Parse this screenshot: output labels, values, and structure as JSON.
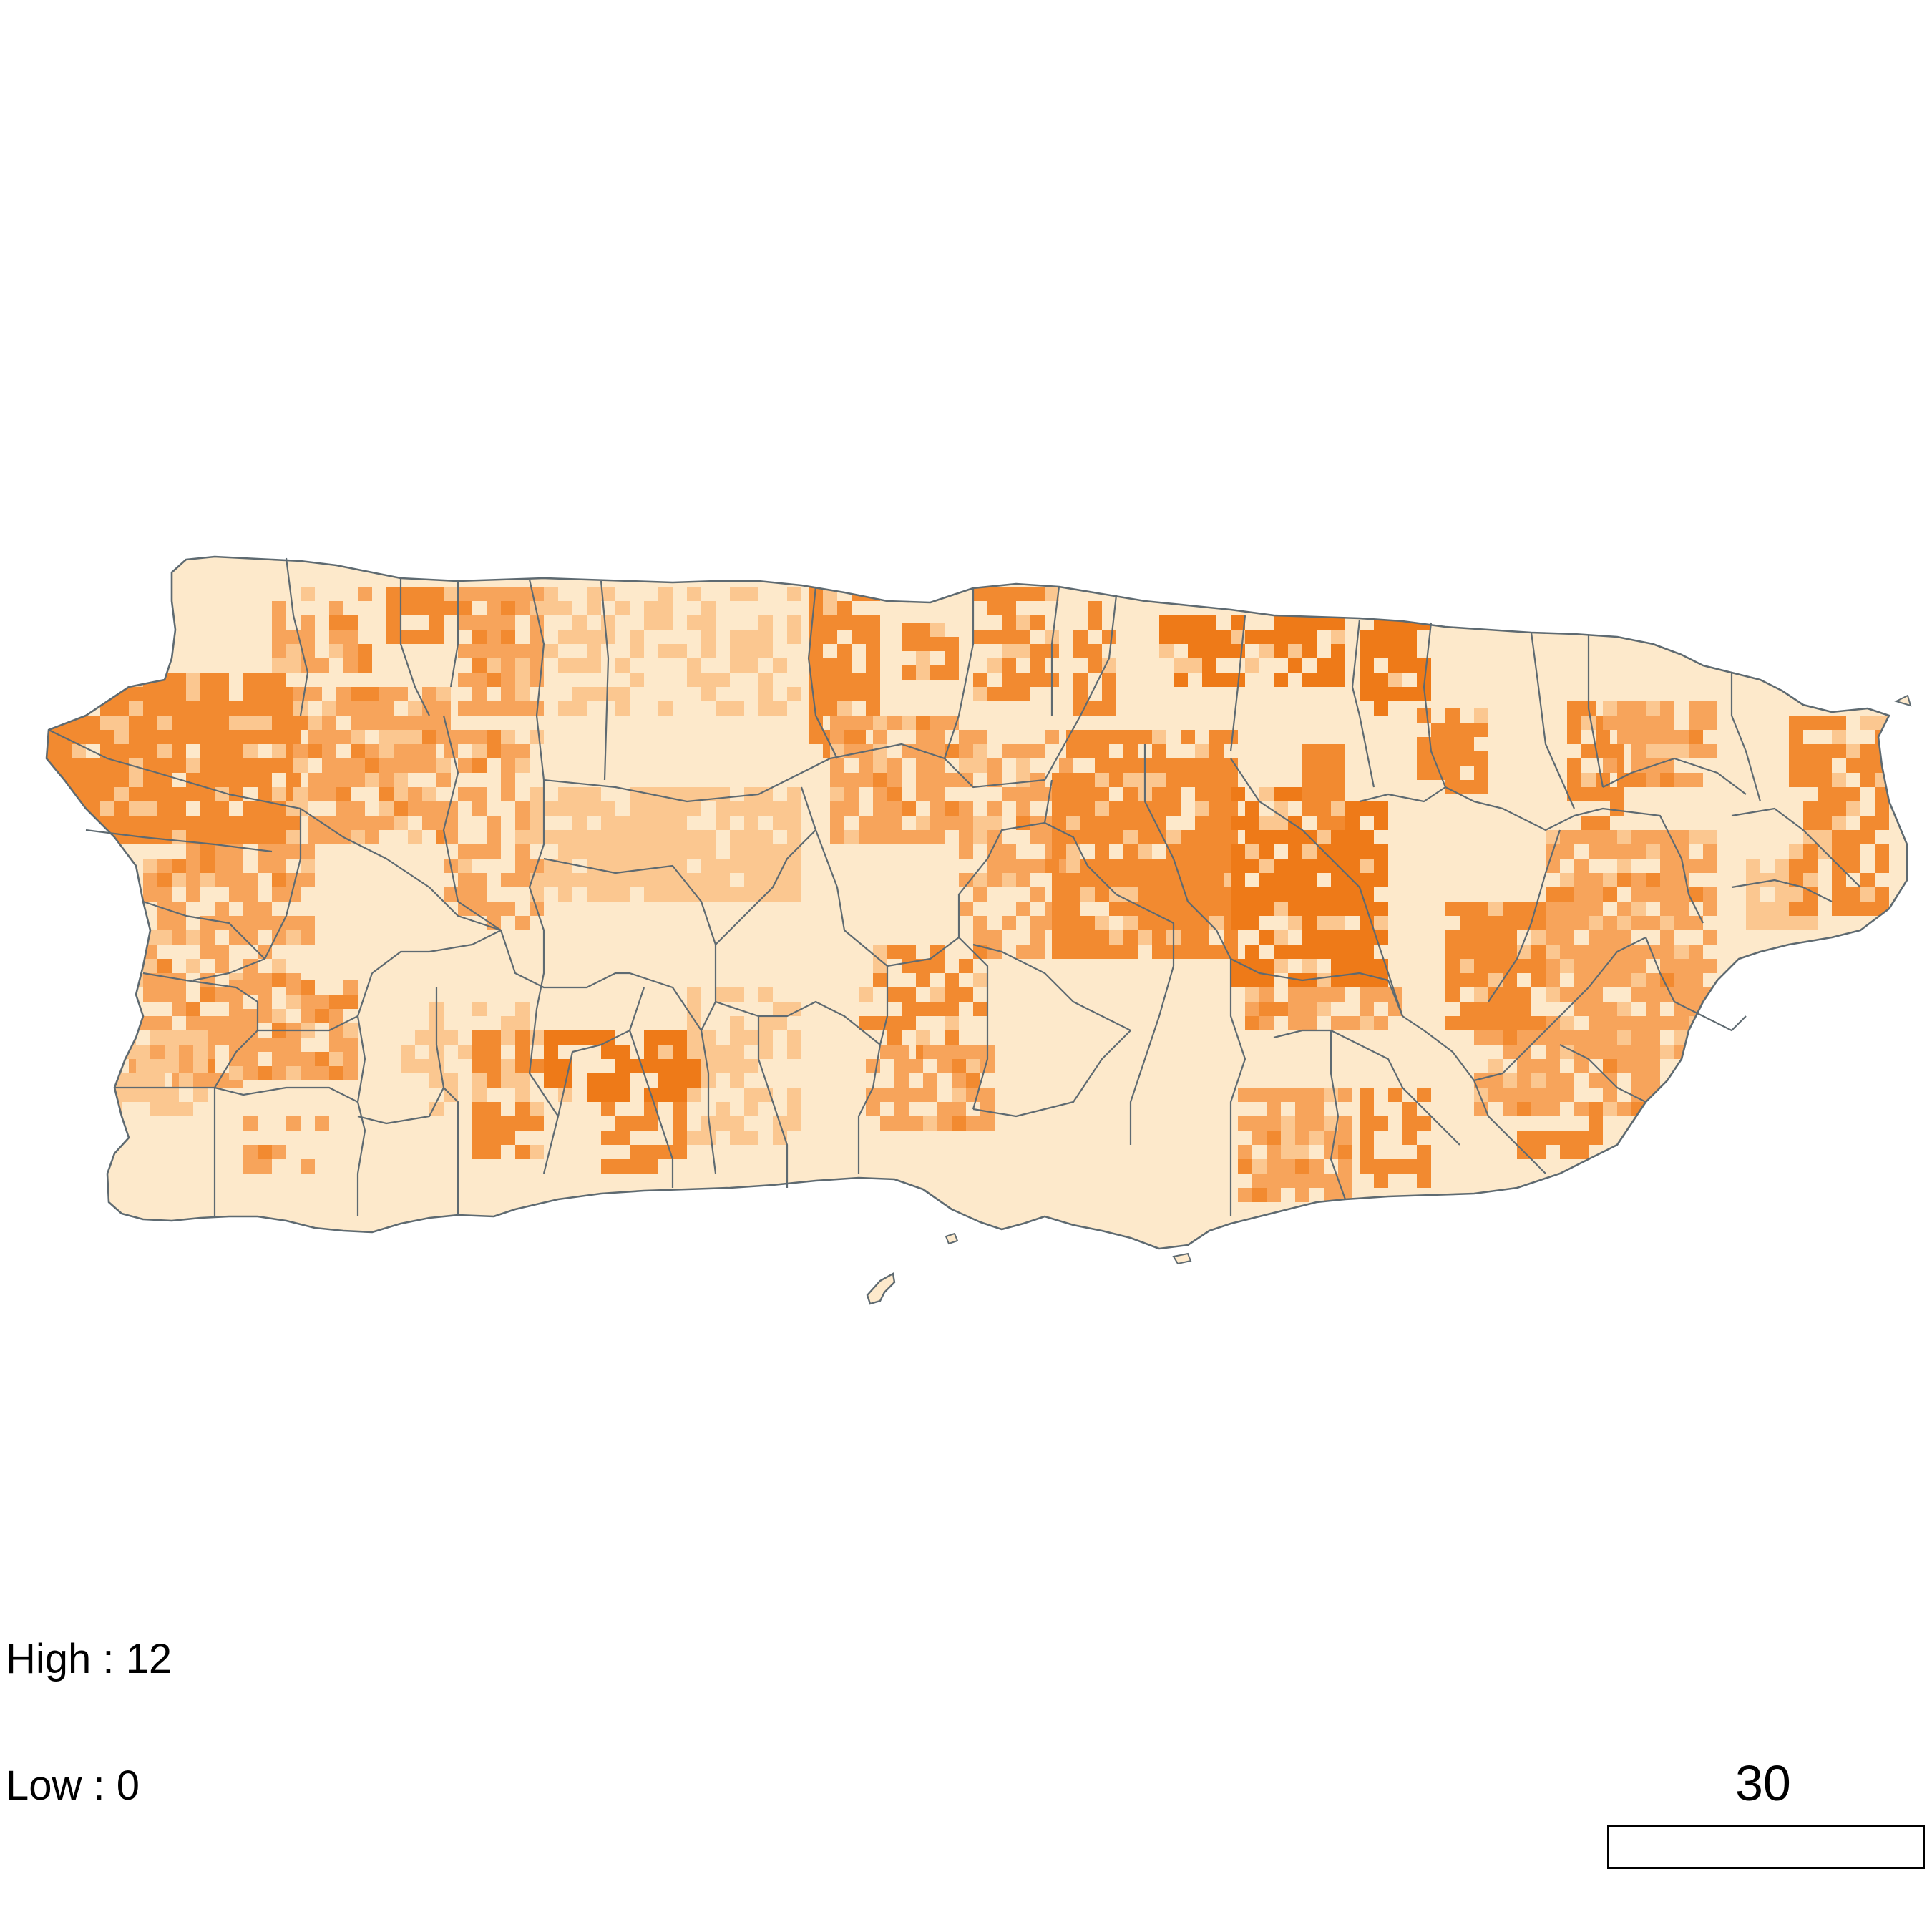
{
  "legend": {
    "high_label": "High : 12",
    "low_label": "Low : 0",
    "high_value": 12,
    "low_value": 0
  },
  "scale_bar": {
    "label": "30"
  },
  "colors": {
    "background": "#ffffff",
    "low": "#fde9cb",
    "light": "#fbc790",
    "medium": "#f7a45b",
    "high": "#f28a30",
    "highest": "#ee7a18",
    "boundary": "#5e6a71"
  }
}
